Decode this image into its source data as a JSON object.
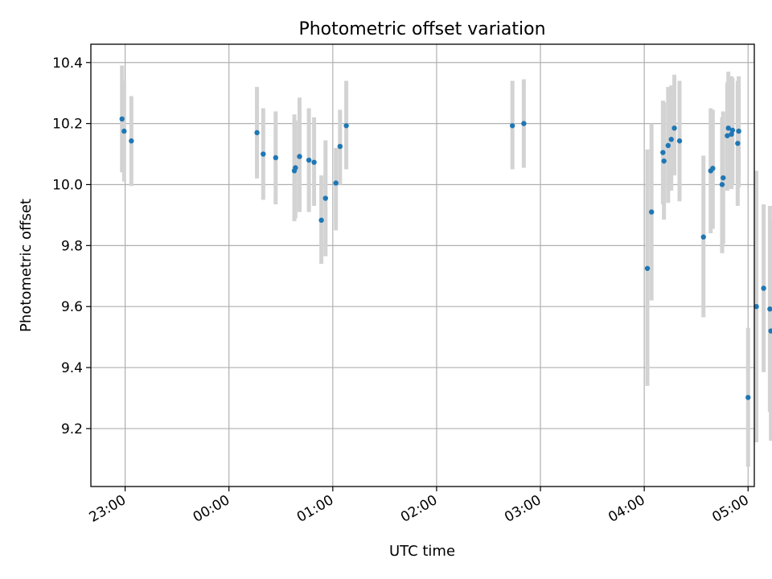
{
  "chart_data": {
    "type": "scatter",
    "title": "Photometric offset variation",
    "xlabel": "UTC time",
    "ylabel": "Photometric offset",
    "ylim": [
      9.01,
      10.46
    ],
    "xlim": [
      -0.33,
      6.06
    ],
    "grid": true,
    "x_ticks": [
      {
        "value": 0,
        "label": "23:00"
      },
      {
        "value": 1,
        "label": "00:00"
      },
      {
        "value": 2,
        "label": "01:00"
      },
      {
        "value": 3,
        "label": "02:00"
      },
      {
        "value": 4,
        "label": "03:00"
      },
      {
        "value": 5,
        "label": "04:00"
      },
      {
        "value": 6,
        "label": "05:00"
      }
    ],
    "y_ticks": [
      {
        "value": 9.2,
        "label": "9.2"
      },
      {
        "value": 9.4,
        "label": "9.4"
      },
      {
        "value": 9.6,
        "label": "9.6"
      },
      {
        "value": 9.8,
        "label": "9.8"
      },
      {
        "value": 10.0,
        "label": "10.0"
      },
      {
        "value": 10.2,
        "label": "10.2"
      },
      {
        "value": 10.4,
        "label": "10.4"
      }
    ],
    "series": [
      {
        "name": "Photometric offset",
        "color": "#1f77b4",
        "errorbar_color": "#d3d3d3",
        "points": [
          {
            "x": -0.03,
            "y": 10.215,
            "lo": 10.04,
            "hi": 10.39
          },
          {
            "x": -0.01,
            "y": 10.175,
            "lo": 10.01,
            "hi": 10.34
          },
          {
            "x": 0.06,
            "y": 10.143,
            "lo": 9.995,
            "hi": 10.29
          },
          {
            "x": 1.27,
            "y": 10.17,
            "lo": 10.02,
            "hi": 10.32
          },
          {
            "x": 1.33,
            "y": 10.1,
            "lo": 9.95,
            "hi": 10.25
          },
          {
            "x": 1.45,
            "y": 10.088,
            "lo": 9.935,
            "hi": 10.24
          },
          {
            "x": 1.63,
            "y": 10.045,
            "lo": 9.88,
            "hi": 10.23
          },
          {
            "x": 1.64,
            "y": 10.055,
            "lo": 9.89,
            "hi": 10.21
          },
          {
            "x": 1.68,
            "y": 10.092,
            "lo": 9.91,
            "hi": 10.285
          },
          {
            "x": 1.77,
            "y": 10.08,
            "lo": 9.91,
            "hi": 10.25
          },
          {
            "x": 1.82,
            "y": 10.073,
            "lo": 9.93,
            "hi": 10.22
          },
          {
            "x": 1.89,
            "y": 9.883,
            "lo": 9.74,
            "hi": 10.03
          },
          {
            "x": 1.93,
            "y": 9.955,
            "lo": 9.765,
            "hi": 10.145
          },
          {
            "x": 2.03,
            "y": 10.005,
            "lo": 9.85,
            "hi": 10.12
          },
          {
            "x": 2.07,
            "y": 10.125,
            "lo": 10.0,
            "hi": 10.245
          },
          {
            "x": 2.13,
            "y": 10.193,
            "lo": 10.05,
            "hi": 10.34
          },
          {
            "x": 3.73,
            "y": 10.193,
            "lo": 10.05,
            "hi": 10.34
          },
          {
            "x": 3.84,
            "y": 10.2,
            "lo": 10.055,
            "hi": 10.345
          },
          {
            "x": 5.03,
            "y": 9.725,
            "lo": 9.34,
            "hi": 10.115
          },
          {
            "x": 5.07,
            "y": 9.91,
            "lo": 9.62,
            "hi": 10.2
          },
          {
            "x": 5.18,
            "y": 10.105,
            "lo": 9.935,
            "hi": 10.275
          },
          {
            "x": 5.19,
            "y": 10.077,
            "lo": 9.885,
            "hi": 10.27
          },
          {
            "x": 5.23,
            "y": 10.128,
            "lo": 9.94,
            "hi": 10.32
          },
          {
            "x": 5.26,
            "y": 10.148,
            "lo": 9.98,
            "hi": 10.325
          },
          {
            "x": 5.29,
            "y": 10.185,
            "lo": 10.03,
            "hi": 10.36
          },
          {
            "x": 5.34,
            "y": 10.143,
            "lo": 9.945,
            "hi": 10.34
          },
          {
            "x": 5.57,
            "y": 9.828,
            "lo": 9.565,
            "hi": 10.095
          },
          {
            "x": 5.64,
            "y": 10.045,
            "lo": 9.84,
            "hi": 10.25
          },
          {
            "x": 5.66,
            "y": 10.053,
            "lo": 9.855,
            "hi": 10.245
          },
          {
            "x": 5.75,
            "y": 10.0,
            "lo": 9.775,
            "hi": 10.22
          },
          {
            "x": 5.76,
            "y": 10.022,
            "lo": 9.805,
            "hi": 10.24
          },
          {
            "x": 5.8,
            "y": 10.16,
            "lo": 9.98,
            "hi": 10.335
          },
          {
            "x": 5.81,
            "y": 10.185,
            "lo": 9.995,
            "hi": 10.37
          },
          {
            "x": 5.84,
            "y": 10.165,
            "lo": 9.985,
            "hi": 10.355
          },
          {
            "x": 5.85,
            "y": 10.178,
            "lo": 10.0,
            "hi": 10.35
          },
          {
            "x": 5.9,
            "y": 10.135,
            "lo": 9.93,
            "hi": 10.34
          },
          {
            "x": 5.91,
            "y": 10.175,
            "lo": 9.99,
            "hi": 10.355
          },
          {
            "x": 6.0,
            "y": 9.302,
            "lo": 9.075,
            "hi": 9.53
          },
          {
            "x": 6.08,
            "y": 9.6,
            "lo": 9.155,
            "hi": 10.045
          },
          {
            "x": 6.15,
            "y": 9.66,
            "lo": 9.385,
            "hi": 9.935
          },
          {
            "x": 6.21,
            "y": 9.592,
            "lo": 9.255,
            "hi": 9.93
          },
          {
            "x": 6.22,
            "y": 9.52,
            "lo": 9.16,
            "hi": 9.88
          }
        ]
      }
    ]
  }
}
